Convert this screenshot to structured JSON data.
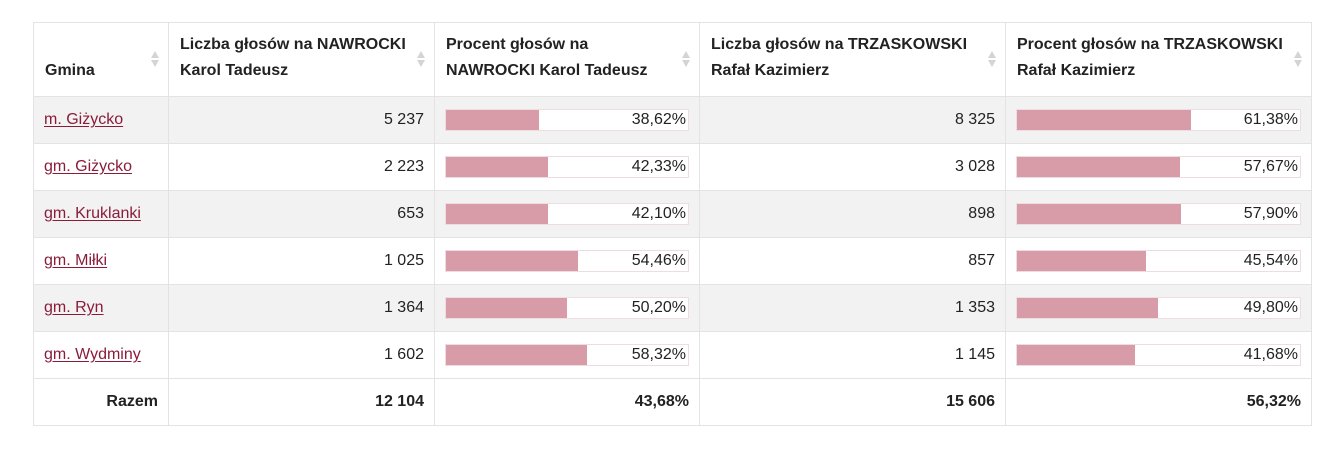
{
  "table": {
    "headers": [
      {
        "label": "Gmina"
      },
      {
        "label": "Liczba głosów na NAWROCKI Karol Tadeusz"
      },
      {
        "label": "Procent głosów na NAWROCKI Karol Tadeusz"
      },
      {
        "label": "Liczba głosów na TRZASKOWSKI Rafał Kazimierz"
      },
      {
        "label": "Procent głosów na TRZASKOWSKI Rafał Kazimierz"
      }
    ],
    "rows": [
      {
        "gmina": "m. Giżycko",
        "nawrocki_votes": "5 237",
        "nawrocki_pct": "38,62%",
        "nawrocki_frac": 0.3862,
        "trzaskowski_votes": "8 325",
        "trzaskowski_pct": "61,38%",
        "trzaskowski_frac": 0.6138
      },
      {
        "gmina": "gm. Giżycko",
        "nawrocki_votes": "2 223",
        "nawrocki_pct": "42,33%",
        "nawrocki_frac": 0.4233,
        "trzaskowski_votes": "3 028",
        "trzaskowski_pct": "57,67%",
        "trzaskowski_frac": 0.5767
      },
      {
        "gmina": "gm. Kruklanki",
        "nawrocki_votes": "653",
        "nawrocki_pct": "42,10%",
        "nawrocki_frac": 0.421,
        "trzaskowski_votes": "898",
        "trzaskowski_pct": "57,90%",
        "trzaskowski_frac": 0.579
      },
      {
        "gmina": "gm. Miłki",
        "nawrocki_votes": "1 025",
        "nawrocki_pct": "54,46%",
        "nawrocki_frac": 0.5446,
        "trzaskowski_votes": "857",
        "trzaskowski_pct": "45,54%",
        "trzaskowski_frac": 0.4554
      },
      {
        "gmina": "gm. Ryn",
        "nawrocki_votes": "1 364",
        "nawrocki_pct": "50,20%",
        "nawrocki_frac": 0.502,
        "trzaskowski_votes": "1 353",
        "trzaskowski_pct": "49,80%",
        "trzaskowski_frac": 0.498
      },
      {
        "gmina": "gm. Wydminy",
        "nawrocki_votes": "1 602",
        "nawrocki_pct": "58,32%",
        "nawrocki_frac": 0.5832,
        "trzaskowski_votes": "1 145",
        "trzaskowski_pct": "41,68%",
        "trzaskowski_frac": 0.4168
      }
    ],
    "total": {
      "label": "Razem",
      "nawrocki_votes": "12 104",
      "nawrocki_pct": "43,68%",
      "trzaskowski_votes": "15 606",
      "trzaskowski_pct": "56,32%"
    }
  },
  "colors": {
    "link": "#8a1c3a",
    "bar_fill": "#d89ca9",
    "row_alt": "#f2f2f2"
  }
}
